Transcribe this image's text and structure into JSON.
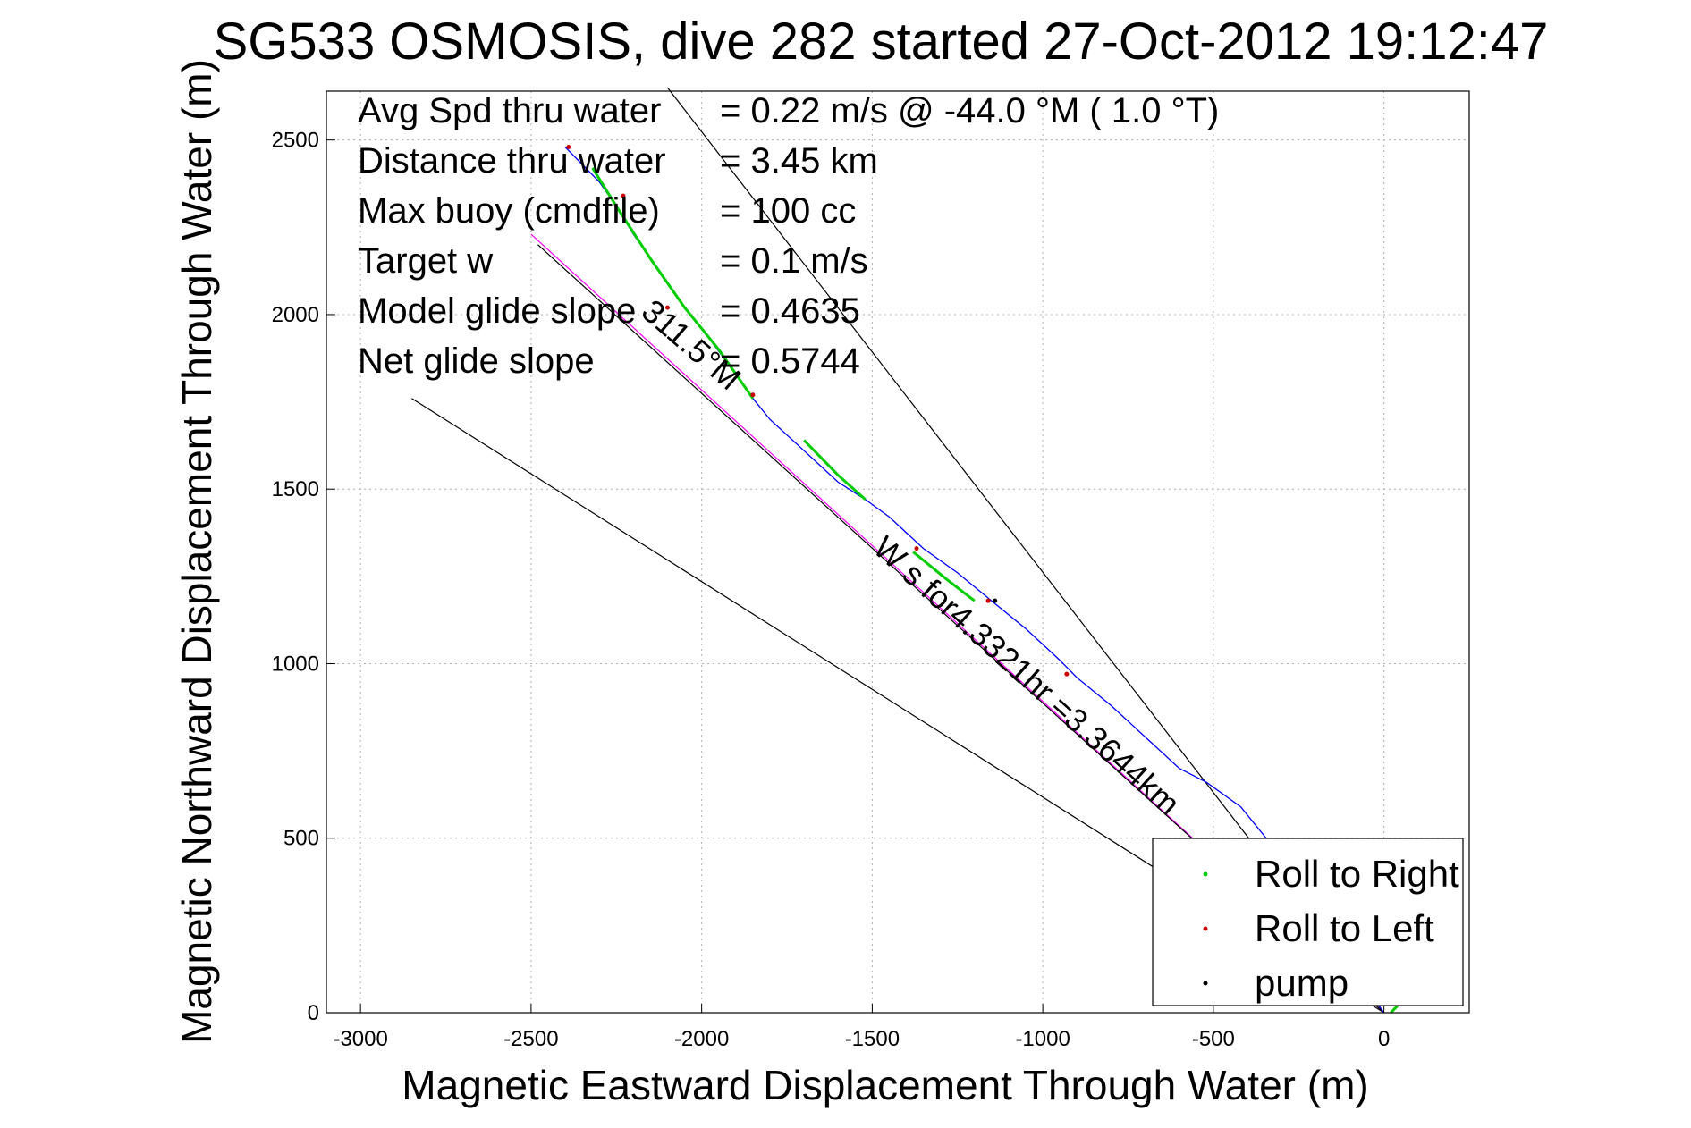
{
  "chart_data": {
    "type": "line",
    "title": "SG533 OSMOSIS, dive 282 started 27-Oct-2012 19:12:47",
    "xlabel": "Magnetic Eastward Displacement Through Water (m)",
    "ylabel": "Magnetic Northward Displacement Through Water (m)",
    "xlim": [
      -3100,
      250
    ],
    "ylim": [
      0,
      2640
    ],
    "xticks": [
      -3000,
      -2500,
      -2000,
      -1500,
      -1000,
      -500,
      0
    ],
    "yticks": [
      0,
      500,
      1000,
      1500,
      2000,
      2500
    ],
    "grid": true,
    "legend_position": "bottom-right",
    "info": [
      {
        "label": "Avg Spd thru water",
        "value": "=  0.22 m/s @ -44.0 °M (  1.0 °T)"
      },
      {
        "label": "Distance thru water",
        "value": "=  3.45 km"
      },
      {
        "label": "Max buoy (cmdfile)",
        "value": "= 100 cc"
      },
      {
        "label": "Target w",
        "value": "= 0.1 m/s"
      },
      {
        "label": "Model glide slope",
        "value": "= 0.4635"
      },
      {
        "label": "Net glide slope",
        "value": "= 0.5744"
      }
    ],
    "heading_label": "311.5°M",
    "line_label": "W  s for4.3321hr =3.3644km",
    "legend": [
      {
        "label": "Roll to Right",
        "color": "#00cc00"
      },
      {
        "label": "Roll to Left",
        "color": "#cc0000"
      },
      {
        "label": "pump",
        "color": "#000000"
      }
    ],
    "track": {
      "color": "#0000ff",
      "x": [
        0,
        -100,
        -200,
        -320,
        -420,
        -520,
        -600,
        -700,
        -800,
        -900,
        -950,
        -1050,
        -1150,
        -1250,
        -1350,
        -1450,
        -1520,
        -1600,
        -1700,
        -1800,
        -1850,
        -1900,
        -2000,
        -2050,
        -2100,
        -2150,
        -2200,
        -2250,
        -2300,
        -2350,
        -2400
      ],
      "y": [
        0,
        140,
        300,
        470,
        590,
        660,
        700,
        790,
        880,
        960,
        1010,
        1100,
        1180,
        1260,
        1330,
        1420,
        1470,
        1520,
        1610,
        1700,
        1760,
        1830,
        1960,
        2020,
        2090,
        2160,
        2230,
        2310,
        2380,
        2430,
        2480
      ]
    },
    "green_segments": [
      {
        "x": [
          20,
          40,
          60
        ],
        "y": [
          0,
          20,
          60
        ]
      },
      {
        "x": [
          -1200,
          -1280,
          -1380
        ],
        "y": [
          1180,
          1240,
          1320
        ]
      },
      {
        "x": [
          -1520,
          -1600,
          -1700
        ],
        "y": [
          1470,
          1540,
          1640
        ]
      },
      {
        "x": [
          -1850,
          -1950,
          -2050,
          -2150,
          -2250,
          -2320
        ],
        "y": [
          1760,
          1900,
          2020,
          2160,
          2310,
          2420
        ]
      }
    ],
    "red_points": {
      "x": [
        -1370,
        -1160,
        -930,
        -2230,
        -2390,
        -2100,
        -1850
      ],
      "y": [
        1330,
        1180,
        970,
        2340,
        2480,
        2020,
        1770
      ]
    },
    "black_points": {
      "x": [
        -1140
      ],
      "y": [
        1180
      ]
    },
    "reference_lines": [
      {
        "color": "#000000",
        "x": [
          -2850,
          0
        ],
        "y": [
          1760,
          0
        ]
      },
      {
        "color": "#000000",
        "x": [
          -2100,
          0
        ],
        "y": [
          2650,
          0
        ]
      },
      {
        "color": "#ff00ff",
        "x": [
          -2500,
          0
        ],
        "y": [
          2230,
          0
        ]
      },
      {
        "color": "#000000",
        "x": [
          -2480,
          0
        ],
        "y": [
          2200,
          0
        ]
      }
    ]
  }
}
